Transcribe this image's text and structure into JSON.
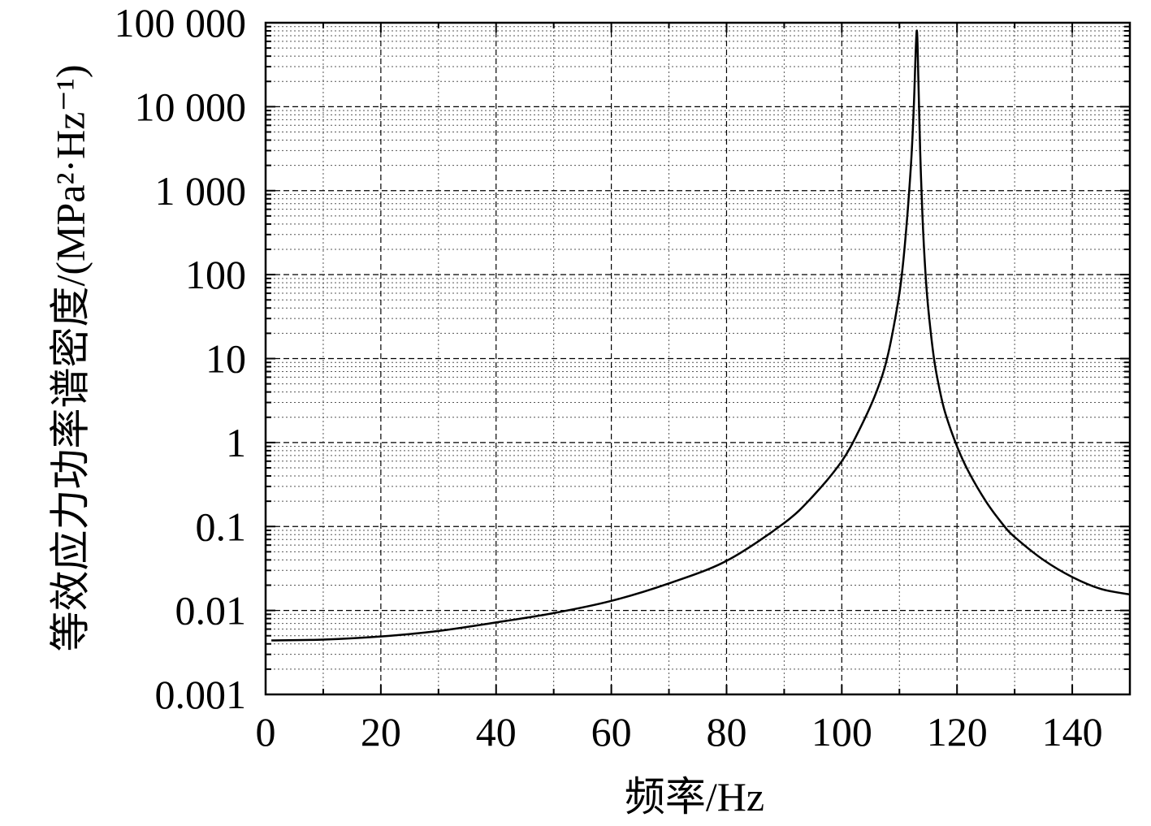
{
  "chart_data": {
    "type": "line",
    "xlabel": "频率/Hz",
    "ylabel": "等效应力功率谱密度/(MPa²·Hz⁻¹)",
    "x_scale": "linear",
    "y_scale": "log",
    "xlim": [
      0,
      150
    ],
    "ylim": [
      0.001,
      100000
    ],
    "x_ticks": [
      0,
      20,
      40,
      60,
      80,
      100,
      120,
      140
    ],
    "x_tick_labels": [
      "0",
      "20",
      "40",
      "60",
      "80",
      "100",
      "120",
      "140"
    ],
    "y_ticks": [
      0.001,
      0.01,
      0.1,
      1,
      10,
      100,
      1000,
      10000,
      100000
    ],
    "y_tick_labels": [
      "0.001",
      "0.01",
      "0.1",
      "1",
      "10",
      "100",
      "1 000",
      "10 000",
      "100 000"
    ],
    "grid": true,
    "series": [
      {
        "x": [
          1,
          10,
          20,
          30,
          40,
          50,
          60,
          70,
          80,
          90,
          95,
          100,
          103,
          106,
          108,
          110,
          111,
          112,
          112.5,
          113,
          113.3,
          113.6,
          114,
          114.5,
          115,
          116,
          117,
          118,
          120,
          122,
          125,
          128,
          130,
          135,
          140,
          145,
          150
        ],
        "y": [
          0.0044,
          0.0045,
          0.0049,
          0.0057,
          0.0072,
          0.0093,
          0.013,
          0.021,
          0.039,
          0.11,
          0.23,
          0.6,
          1.4,
          4,
          11,
          60,
          250,
          2000,
          10000,
          80000,
          20000,
          3000,
          500,
          110,
          40,
          10,
          4.2,
          2.2,
          0.9,
          0.45,
          0.2,
          0.105,
          0.075,
          0.04,
          0.025,
          0.018,
          0.0155
        ]
      }
    ]
  }
}
